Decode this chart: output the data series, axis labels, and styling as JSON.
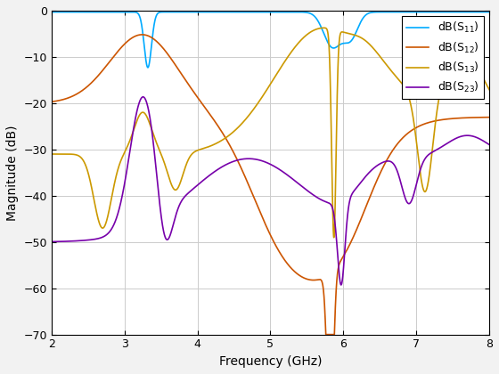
{
  "xlabel": "Frequency (GHz)",
  "ylabel": "Magnitude (dB)",
  "xlim": [
    2,
    8
  ],
  "ylim": [
    -70,
    0
  ],
  "yticks": [
    0,
    -10,
    -20,
    -30,
    -40,
    -50,
    -60,
    -70
  ],
  "xticks": [
    2,
    3,
    4,
    5,
    6,
    7,
    8
  ],
  "legend": [
    "dB(S_{11})",
    "dB(S_{12})",
    "dB(S_{13})",
    "dB(S_{23})"
  ],
  "colors": {
    "S11": "#00AAFF",
    "S12": "#CC5500",
    "S13": "#CC9900",
    "S23": "#7700AA"
  },
  "grid_color": "#CCCCCC",
  "background_color": "#FFFFFF",
  "fig_background": "#F2F2F2"
}
